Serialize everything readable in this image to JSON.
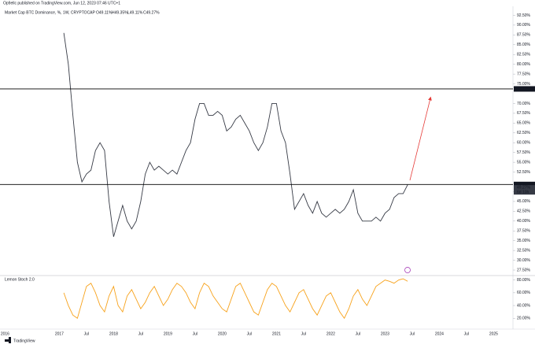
{
  "header": {
    "publisher": "Op9ellc published on TradingView.com, Jun 12, 2023 07:46 UTC+1",
    "brand": "TradingView"
  },
  "chart_data": [
    {
      "type": "line",
      "title": "Market Cap BTC Dominance, %, 1W, CRYPTOCAP",
      "ohlc": [
        "O49.11%",
        "H49.35%",
        "L49.11%",
        "C49.27%"
      ],
      "categories": [
        null,
        null,
        "2016",
        null,
        null,
        null,
        null,
        null,
        null,
        null,
        null,
        null,
        null,
        null,
        "2017",
        null,
        null,
        null,
        null,
        null,
        "Jul",
        null,
        null,
        null,
        null,
        null,
        "2018",
        null,
        null,
        null,
        null,
        null,
        "Jul",
        null,
        null,
        null,
        null,
        null,
        "2019",
        null,
        null,
        null,
        null,
        null,
        "Jul",
        null,
        null,
        null,
        null,
        null,
        "2020",
        null,
        null,
        null,
        null,
        null,
        "Jul",
        null,
        null,
        null,
        null,
        null,
        "2021",
        null,
        null,
        null,
        null,
        null,
        "Jul",
        null,
        null,
        null,
        null,
        null,
        "2022",
        null,
        null,
        null,
        null,
        null,
        "Jul",
        null,
        null,
        null,
        null,
        null,
        "2023",
        null,
        null,
        null,
        null,
        null,
        "Jul",
        null,
        null,
        null,
        null,
        null,
        "2024",
        null,
        null,
        null,
        null,
        null,
        "Jul",
        null,
        null,
        null,
        null,
        null,
        "2025",
        null,
        null,
        null,
        null
      ],
      "series": [
        {
          "name": "BTC Dominance",
          "color": "#363a45",
          "values": [
            null,
            null,
            null,
            null,
            null,
            null,
            null,
            null,
            null,
            null,
            null,
            null,
            null,
            null,
            null,
            88,
            80,
            67,
            55,
            50,
            52,
            53,
            58,
            60,
            58,
            45,
            36,
            40,
            44,
            40,
            38,
            40,
            45,
            52,
            55,
            53,
            54,
            53,
            52,
            53,
            52,
            55,
            58,
            60,
            66,
            70,
            70,
            67,
            67,
            68,
            67,
            63,
            64,
            66,
            67,
            65,
            63,
            60,
            58,
            60,
            64,
            70,
            70,
            63,
            60,
            52,
            43,
            45,
            47,
            44,
            42,
            45,
            42,
            41,
            42,
            43,
            42,
            43,
            45,
            48,
            42,
            40,
            40,
            40,
            41,
            40,
            42,
            43,
            46,
            47,
            47,
            49.27,
            null,
            null,
            null,
            null,
            null,
            null,
            null,
            null,
            null,
            null,
            null,
            null,
            null,
            null,
            null,
            null,
            null,
            null,
            null,
            null,
            null,
            null,
            null
          ]
        }
      ],
      "levels": [
        {
          "value": 73.72,
          "label": "73.72%"
        },
        {
          "value": 49.34,
          "label": "49.34%"
        }
      ],
      "last_price": {
        "value": 49.27,
        "label": "49.27%"
      },
      "countdown": "6d 10h",
      "ylim": [
        26.5,
        94.8
      ],
      "yticks": [
        {
          "value": 27.5,
          "label": "27.50%"
        },
        {
          "value": 30,
          "label": "30.00%"
        },
        {
          "value": 32.5,
          "label": "32.50%"
        },
        {
          "value": 35,
          "label": "35.00%"
        },
        {
          "value": 37.5,
          "label": "37.50%"
        },
        {
          "value": 40,
          "label": "40.00%"
        },
        {
          "value": 42.5,
          "label": "42.50%"
        },
        {
          "value": 45,
          "label": "45.00%"
        },
        {
          "value": 47.5,
          "label": "47.50%"
        },
        {
          "value": 52.5,
          "label": "52.50%"
        },
        {
          "value": 55,
          "label": "55.00%"
        },
        {
          "value": 57.5,
          "label": "57.50%"
        },
        {
          "value": 60,
          "label": "60.00%"
        },
        {
          "value": 62.5,
          "label": "62.50%"
        },
        {
          "value": 65,
          "label": "65.00%"
        },
        {
          "value": 67.5,
          "label": "67.50%"
        },
        {
          "value": 70,
          "label": "70.00%"
        },
        {
          "value": 75,
          "label": "75.00%"
        },
        {
          "value": 77.5,
          "label": "77.50%"
        },
        {
          "value": 80,
          "label": "80.00%"
        },
        {
          "value": 82.5,
          "label": "82.50%"
        },
        {
          "value": 85,
          "label": "85.00%"
        },
        {
          "value": 87.5,
          "label": "87.50%"
        },
        {
          "value": 90,
          "label": "90.00%"
        },
        {
          "value": 92.5,
          "label": "92.50%"
        }
      ]
    },
    {
      "type": "line",
      "title": "Lemon Stoch 2.0",
      "series": [
        {
          "name": "Stoch",
          "color": "#f7a21b",
          "values": [
            null,
            null,
            null,
            null,
            null,
            null,
            null,
            null,
            null,
            null,
            null,
            null,
            null,
            null,
            null,
            60,
            40,
            25,
            20,
            45,
            70,
            75,
            60,
            40,
            30,
            55,
            70,
            40,
            30,
            55,
            65,
            50,
            35,
            45,
            60,
            70,
            55,
            40,
            50,
            65,
            75,
            70,
            60,
            45,
            35,
            60,
            75,
            70,
            55,
            45,
            35,
            30,
            50,
            70,
            75,
            60,
            45,
            30,
            25,
            45,
            65,
            75,
            70,
            55,
            40,
            30,
            45,
            60,
            65,
            50,
            35,
            25,
            40,
            55,
            60,
            45,
            30,
            20,
            35,
            55,
            65,
            50,
            40,
            55,
            70,
            75,
            80,
            78,
            75,
            80,
            82,
            78,
            null,
            null,
            null,
            null,
            null,
            null,
            null,
            null,
            null,
            null,
            null,
            null,
            null,
            null,
            null,
            null,
            null,
            null,
            null,
            null,
            null,
            null,
            null
          ]
        }
      ],
      "ylim": [
        3,
        87
      ],
      "yticks": [
        {
          "value": 20,
          "label": "20.00%"
        },
        {
          "value": 40,
          "label": "40.00%"
        },
        {
          "value": 60,
          "label": "60.00%"
        },
        {
          "value": 80,
          "label": "80.00%"
        }
      ]
    }
  ]
}
